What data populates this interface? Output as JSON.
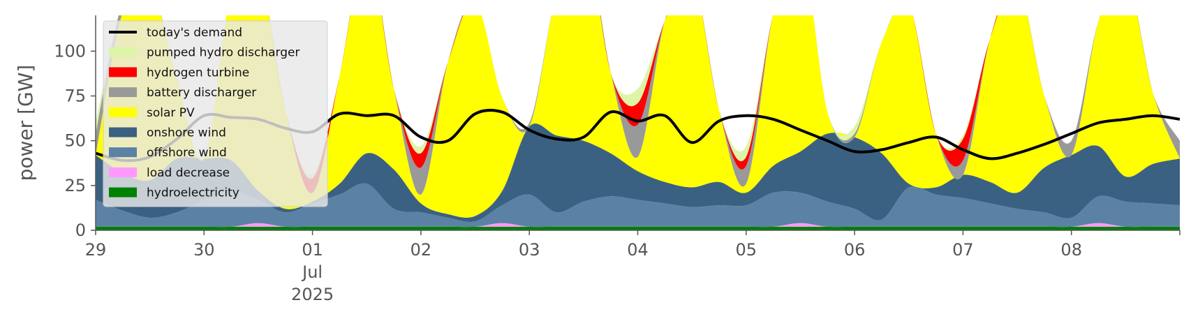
{
  "chart_data": {
    "type": "area",
    "title": "",
    "ylabel": "power [GW]",
    "xlabel": "",
    "ylim": [
      0,
      120
    ],
    "yticks": [
      0,
      25,
      50,
      75,
      100
    ],
    "x_range": [
      "2025-06-29T00:00",
      "2025-07-09T00:00"
    ],
    "x_step_hours": 6,
    "x_ticks": [
      {
        "x": "2025-06-29",
        "label": "29"
      },
      {
        "x": "2025-06-30",
        "label": "30"
      },
      {
        "x": "2025-07-01",
        "label": "01",
        "sub": [
          "Jul",
          "2025"
        ]
      },
      {
        "x": "2025-07-02",
        "label": "02"
      },
      {
        "x": "2025-07-03",
        "label": "03"
      },
      {
        "x": "2025-07-04",
        "label": "04"
      },
      {
        "x": "2025-07-05",
        "label": "05"
      },
      {
        "x": "2025-07-06",
        "label": "06"
      },
      {
        "x": "2025-07-07",
        "label": "07"
      },
      {
        "x": "2025-07-08",
        "label": "08"
      }
    ],
    "legend_position": "upper-left",
    "grid": false,
    "stack_order": [
      "hydroelectricity",
      "load decrease",
      "offshore wind",
      "onshore wind",
      "solar PV",
      "battery discharger",
      "hydrogen turbine",
      "pumped hydro discharger"
    ],
    "series": [
      {
        "name": "hydroelectricity",
        "color": "#008000",
        "values": [
          2,
          2,
          2,
          2,
          2,
          2,
          2,
          2,
          2,
          2,
          2,
          2,
          2,
          2,
          2,
          2,
          2,
          2,
          2,
          2,
          2,
          2,
          2,
          2,
          2,
          2,
          2,
          2,
          2,
          2,
          2,
          2,
          2,
          2,
          2,
          2,
          2,
          2,
          2,
          2,
          2
        ]
      },
      {
        "name": "load decrease",
        "color": "#ff99ff",
        "values": [
          0,
          0,
          0,
          0,
          0,
          0,
          2,
          0,
          0,
          0,
          0,
          0,
          0,
          0,
          0,
          2,
          0,
          0,
          0,
          0,
          0,
          0,
          0,
          0,
          0,
          0,
          2,
          0,
          0,
          0,
          0,
          0,
          0,
          0,
          0,
          0,
          0,
          2,
          0,
          0,
          0
        ]
      },
      {
        "name": "offshore wind",
        "color": "#5b82a5",
        "values": [
          15,
          9,
          5,
          8,
          15,
          20,
          13,
          8,
          13,
          18,
          24,
          10,
          8,
          5,
          3,
          10,
          18,
          8,
          14,
          17,
          15,
          13,
          11,
          12,
          12,
          19,
          17,
          14,
          10,
          4,
          22,
          18,
          16,
          13,
          10,
          8,
          5,
          15,
          14,
          13,
          12
        ]
      },
      {
        "name": "onshore wind",
        "color": "#3b6182",
        "values": [
          25,
          21,
          21,
          30,
          23,
          17,
          5,
          2,
          1,
          6,
          17,
          22,
          5,
          2,
          3,
          8,
          38,
          43,
          34,
          24,
          16,
          12,
          11,
          13,
          7,
          15,
          23,
          38,
          40,
          37,
          2,
          4,
          13,
          12,
          9,
          25,
          35,
          28,
          14,
          22,
          26
        ]
      },
      {
        "name": "solar PV",
        "color": "#ffff00",
        "values": [
          0,
          90,
          110,
          45,
          0,
          95,
          125,
          55,
          5,
          60,
          115,
          45,
          5,
          85,
          120,
          52,
          0,
          80,
          120,
          45,
          8,
          90,
          120,
          40,
          5,
          85,
          118,
          12,
          0,
          62,
          100,
          30,
          0,
          80,
          118,
          40,
          0,
          70,
          115,
          40,
          0
        ]
      },
      {
        "name": "battery discharger",
        "color": "#999999",
        "values": [
          12,
          6,
          0,
          0,
          0,
          0,
          0,
          0,
          0,
          0,
          0,
          0,
          15,
          0,
          0,
          0,
          2,
          0,
          0,
          0,
          18,
          0,
          0,
          0,
          10,
          0,
          0,
          0,
          2,
          0,
          0,
          0,
          8,
          0,
          0,
          0,
          8,
          0,
          0,
          0,
          10
        ]
      },
      {
        "name": "hydrogen turbine",
        "color": "#ff0000",
        "values": [
          0,
          0,
          0,
          0,
          0,
          0,
          0,
          0,
          8,
          0,
          0,
          0,
          8,
          0,
          0,
          0,
          0,
          0,
          0,
          0,
          12,
          0,
          0,
          0,
          5,
          0,
          0,
          0,
          0,
          0,
          0,
          0,
          12,
          0,
          0,
          0,
          0,
          0,
          0,
          0,
          0
        ]
      },
      {
        "name": "pumped hydro discharger",
        "color": "#dcf5a7",
        "values": [
          6,
          0,
          0,
          0,
          0,
          0,
          0,
          0,
          2,
          0,
          0,
          0,
          4,
          0,
          0,
          0,
          0,
          0,
          0,
          0,
          8,
          0,
          0,
          0,
          6,
          0,
          0,
          0,
          4,
          0,
          0,
          0,
          2,
          0,
          0,
          0,
          0,
          0,
          0,
          0,
          0
        ]
      }
    ],
    "line_series": [
      {
        "name": "today's demand",
        "color": "#000000",
        "values": [
          43,
          39,
          41,
          51,
          64,
          63,
          62,
          57,
          55,
          65,
          64,
          64,
          52,
          50,
          65,
          66,
          56,
          51,
          52,
          66,
          61,
          64,
          49,
          61,
          64,
          62,
          56,
          50,
          44,
          45,
          49,
          52,
          45,
          40,
          43,
          48,
          54,
          60,
          62,
          64,
          62
        ]
      }
    ],
    "legend": [
      {
        "label": "today's demand",
        "kind": "line",
        "color": "#000000"
      },
      {
        "label": "pumped hydro discharger",
        "kind": "patch",
        "color": "#dcf5a7"
      },
      {
        "label": "hydrogen turbine",
        "kind": "patch",
        "color": "#ff0000"
      },
      {
        "label": "battery discharger",
        "kind": "patch",
        "color": "#999999"
      },
      {
        "label": "solar PV",
        "kind": "patch",
        "color": "#ffff00"
      },
      {
        "label": "onshore wind",
        "kind": "patch",
        "color": "#3b6182"
      },
      {
        "label": "offshore wind",
        "kind": "patch",
        "color": "#5b82a5"
      },
      {
        "label": "load decrease",
        "kind": "patch",
        "color": "#ff99ff"
      },
      {
        "label": "hydroelectricity",
        "kind": "patch",
        "color": "#008000"
      }
    ]
  }
}
